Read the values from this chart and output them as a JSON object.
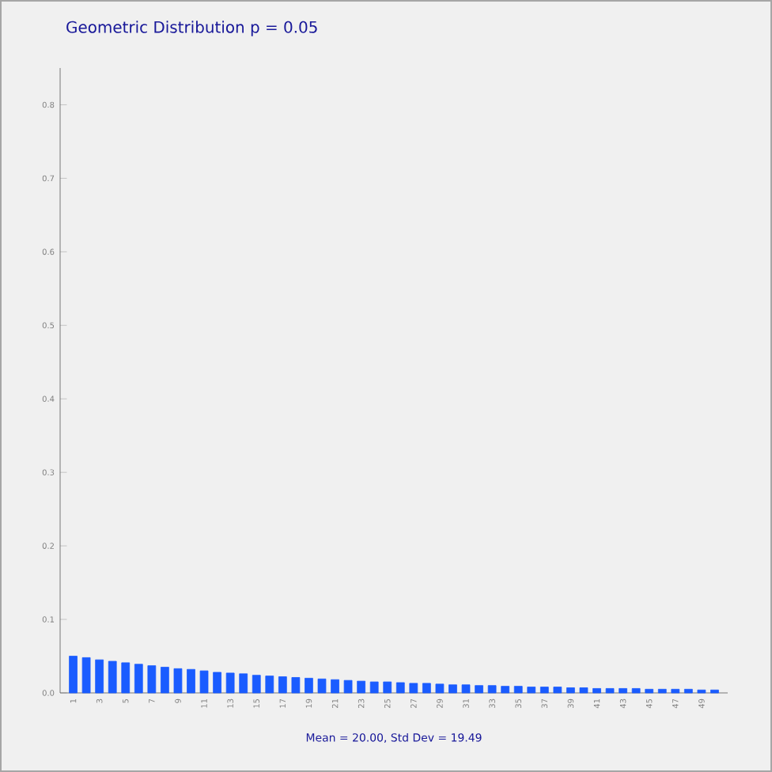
{
  "chart_data": {
    "type": "bar",
    "title": "Geometric Distribution p = 0.05",
    "annotations": [
      "Mean = 20.00, Std Dev = 19.49"
    ],
    "categories": [
      "1",
      null,
      "3",
      null,
      "5",
      null,
      "7",
      null,
      "9",
      null,
      "11",
      null,
      "13",
      null,
      "15",
      null,
      "17",
      null,
      "19",
      null,
      "21",
      null,
      "23",
      null,
      "25",
      null,
      "27",
      null,
      "29",
      null,
      "31",
      null,
      "33",
      null,
      "35",
      null,
      "37",
      null,
      "39",
      null,
      "41",
      null,
      "43",
      null,
      "45",
      null,
      "47",
      null,
      "49",
      null
    ],
    "values": [
      0.05,
      0.048,
      0.045,
      0.043,
      0.041,
      0.039,
      0.037,
      0.035,
      0.033,
      0.032,
      0.03,
      0.028,
      0.027,
      0.026,
      0.024,
      0.023,
      0.022,
      0.021,
      0.02,
      0.019,
      0.018,
      0.017,
      0.016,
      0.015,
      0.015,
      0.014,
      0.013,
      0.013,
      0.012,
      0.011,
      0.011,
      0.01,
      0.01,
      0.009,
      0.009,
      0.008,
      0.008,
      0.008,
      0.007,
      0.007,
      0.006,
      0.006,
      0.006,
      0.006,
      0.005,
      0.005,
      0.005,
      0.005,
      0.004,
      0.004
    ],
    "color": "#1a5cff",
    "ylim": [
      0,
      0.85
    ],
    "yticks": [
      {
        "value": 0,
        "label": "0.0"
      },
      0.1,
      0.2,
      0.3,
      0.4,
      0.5,
      0.6,
      0.7,
      0.8
    ],
    "grid": false
  }
}
